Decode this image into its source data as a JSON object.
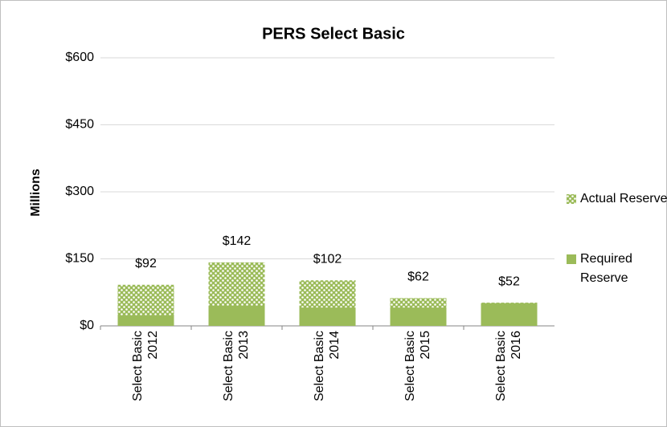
{
  "chart_data": {
    "type": "bar",
    "title": "PERS Select Basic",
    "ylabel": "Millions",
    "categories": [
      "Select Basic 2012",
      "Select Basic 2013",
      "Select Basic 2014",
      "Select Basic 2015",
      "Select Basic 2016"
    ],
    "series": [
      {
        "name": "Actual Reserve",
        "color": "#9bbb59",
        "pattern": "dots",
        "values": [
          92,
          142,
          102,
          62,
          52
        ],
        "value_labels": [
          "$92",
          "$142",
          "$102",
          "$62",
          "$52"
        ]
      },
      {
        "name": "Required Reserve",
        "color": "#9bbb59",
        "values": [
          23,
          45,
          41,
          41,
          50
        ]
      }
    ],
    "ylim": [
      0,
      600
    ],
    "yticks": [
      {
        "value": 0,
        "label": "$0"
      },
      {
        "value": 150,
        "label": "$150"
      },
      {
        "value": 300,
        "label": "$300"
      },
      {
        "value": 450,
        "label": "$450"
      },
      {
        "value": 600,
        "label": "$600"
      }
    ],
    "grid": true,
    "legend": "right"
  }
}
